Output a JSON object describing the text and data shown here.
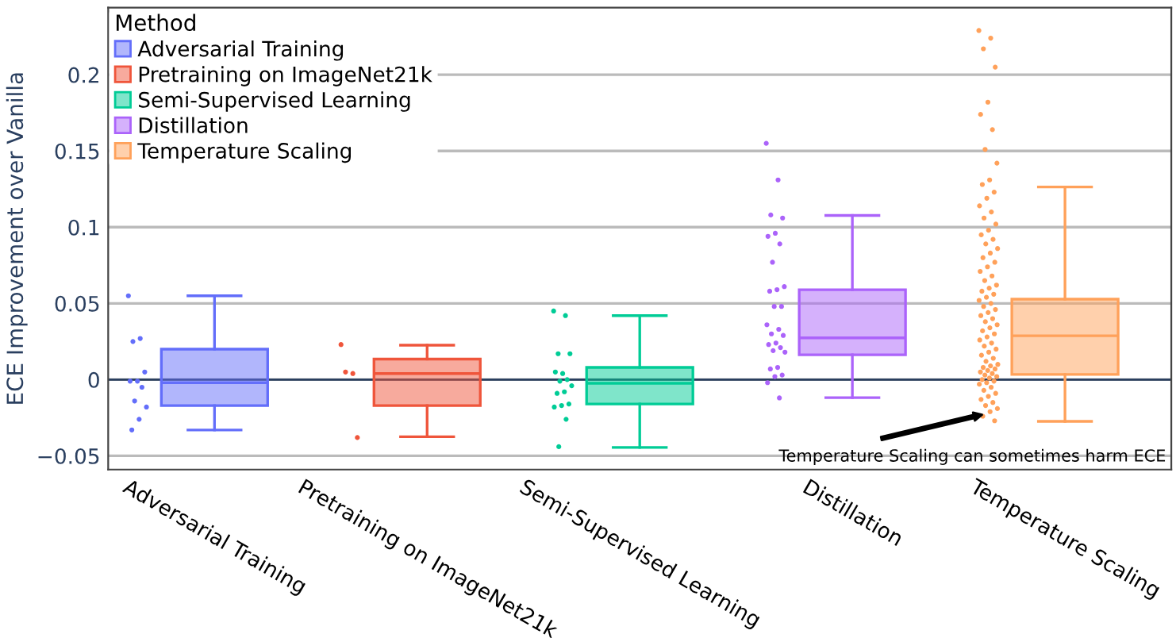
{
  "chart_data": {
    "type": "box",
    "ylabel": "ECE Improvement over Vanilla",
    "legend_title": "Method",
    "legend": "top left",
    "grid": "y",
    "categories": [
      "Adversarial Training",
      "Pretraining on ImageNet21k",
      "Semi-Supervised Learning",
      "Distillation",
      "Temperature Scaling"
    ],
    "colors": [
      "#636efa",
      "#ef553b",
      "#00cc96",
      "#ab63fa",
      "#ffa15a"
    ],
    "boxes": [
      {
        "low": -0.033,
        "q1": -0.017,
        "median": -0.002,
        "q3": 0.02,
        "high": 0.055
      },
      {
        "low": -0.0375,
        "q1": -0.017,
        "median": 0.004,
        "q3": 0.0135,
        "high": 0.0226
      },
      {
        "low": -0.0445,
        "q1": -0.016,
        "median": -0.0024,
        "q3": 0.008,
        "high": 0.042
      },
      {
        "low": -0.0118,
        "q1": 0.0163,
        "median": 0.0274,
        "q3": 0.059,
        "high": 0.1077
      },
      {
        "low": -0.0274,
        "q1": 0.0034,
        "median": 0.0288,
        "q3": 0.0528,
        "high": 0.1264
      }
    ],
    "series": [
      {
        "type": "scatter",
        "name": "Adversarial Training",
        "color": "#636efa",
        "x": [
          "Adversarial Training",
          "Adversarial Training",
          "Adversarial Training",
          "Adversarial Training",
          "Adversarial Training",
          "Adversarial Training",
          "Adversarial Training",
          "Adversarial Training",
          "Adversarial Training",
          "Adversarial Training",
          "Adversarial Training"
        ],
        "values": [
          0.055,
          0.027,
          0.025,
          0.005,
          -0.001,
          -0.001,
          -0.005,
          -0.014,
          -0.018,
          -0.026,
          -0.033
        ]
      },
      {
        "type": "scatter",
        "name": "Pretraining on ImageNet21k",
        "color": "#ef553b",
        "x": [
          "Pretraining on ImageNet21k",
          "Pretraining on ImageNet21k",
          "Pretraining on ImageNet21k",
          "Pretraining on ImageNet21k"
        ],
        "values": [
          0.023,
          0.004,
          0.005,
          -0.038
        ]
      },
      {
        "type": "scatter",
        "name": "Semi-Supervised Learning",
        "color": "#00cc96",
        "x": [
          "Semi-Supervised Learning",
          "Semi-Supervised Learning",
          "Semi-Supervised Learning",
          "Semi-Supervised Learning",
          "Semi-Supervised Learning",
          "Semi-Supervised Learning",
          "Semi-Supervised Learning",
          "Semi-Supervised Learning",
          "Semi-Supervised Learning",
          "Semi-Supervised Learning",
          "Semi-Supervised Learning",
          "Semi-Supervised Learning",
          "Semi-Supervised Learning",
          "Semi-Supervised Learning",
          "Semi-Supervised Learning",
          "Semi-Supervised Learning"
        ],
        "values": [
          0.045,
          0.042,
          0.017,
          0.017,
          0.004,
          0.005,
          0.0,
          -0.001,
          -0.004,
          -0.008,
          -0.009,
          -0.016,
          -0.017,
          -0.018,
          -0.026,
          -0.044
        ]
      },
      {
        "type": "scatter",
        "name": "Distillation",
        "color": "#ab63fa",
        "x": [
          "Distillation",
          "Distillation",
          "Distillation",
          "Distillation",
          "Distillation",
          "Distillation",
          "Distillation",
          "Distillation",
          "Distillation",
          "Distillation",
          "Distillation",
          "Distillation",
          "Distillation",
          "Distillation",
          "Distillation",
          "Distillation",
          "Distillation",
          "Distillation",
          "Distillation",
          "Distillation",
          "Distillation",
          "Distillation",
          "Distillation",
          "Distillation",
          "Distillation",
          "Distillation",
          "Distillation",
          "Distillation"
        ],
        "values": [
          0.155,
          0.131,
          0.108,
          0.106,
          0.096,
          0.094,
          0.089,
          0.077,
          0.061,
          0.059,
          0.058,
          0.048,
          0.048,
          0.036,
          0.033,
          0.03,
          0.029,
          0.024,
          0.023,
          0.021,
          0.019,
          0.018,
          0.008,
          0.007,
          0.003,
          0.002,
          -0.002,
          -0.012
        ]
      },
      {
        "type": "scatter",
        "name": "Temperature Scaling",
        "color": "#ffa15a",
        "x": [
          "Temperature Scaling",
          "Temperature Scaling",
          "Temperature Scaling",
          "Temperature Scaling",
          "Temperature Scaling",
          "Temperature Scaling",
          "Temperature Scaling",
          "Temperature Scaling",
          "Temperature Scaling",
          "Temperature Scaling",
          "Temperature Scaling",
          "Temperature Scaling",
          "Temperature Scaling",
          "Temperature Scaling",
          "Temperature Scaling",
          "Temperature Scaling",
          "Temperature Scaling",
          "Temperature Scaling",
          "Temperature Scaling",
          "Temperature Scaling",
          "Temperature Scaling",
          "Temperature Scaling",
          "Temperature Scaling",
          "Temperature Scaling",
          "Temperature Scaling",
          "Temperature Scaling",
          "Temperature Scaling",
          "Temperature Scaling",
          "Temperature Scaling",
          "Temperature Scaling",
          "Temperature Scaling",
          "Temperature Scaling",
          "Temperature Scaling",
          "Temperature Scaling",
          "Temperature Scaling",
          "Temperature Scaling",
          "Temperature Scaling",
          "Temperature Scaling",
          "Temperature Scaling",
          "Temperature Scaling",
          "Temperature Scaling",
          "Temperature Scaling",
          "Temperature Scaling",
          "Temperature Scaling",
          "Temperature Scaling",
          "Temperature Scaling",
          "Temperature Scaling",
          "Temperature Scaling",
          "Temperature Scaling",
          "Temperature Scaling",
          "Temperature Scaling",
          "Temperature Scaling",
          "Temperature Scaling",
          "Temperature Scaling",
          "Temperature Scaling",
          "Temperature Scaling",
          "Temperature Scaling",
          "Temperature Scaling",
          "Temperature Scaling",
          "Temperature Scaling",
          "Temperature Scaling",
          "Temperature Scaling",
          "Temperature Scaling",
          "Temperature Scaling",
          "Temperature Scaling",
          "Temperature Scaling",
          "Temperature Scaling",
          "Temperature Scaling",
          "Temperature Scaling",
          "Temperature Scaling",
          "Temperature Scaling",
          "Temperature Scaling",
          "Temperature Scaling",
          "Temperature Scaling",
          "Temperature Scaling",
          "Temperature Scaling",
          "Temperature Scaling",
          "Temperature Scaling",
          "Temperature Scaling",
          "Temperature Scaling"
        ],
        "values": [
          0.229,
          0.224,
          0.217,
          0.205,
          0.182,
          0.174,
          0.164,
          0.151,
          0.142,
          0.131,
          0.128,
          0.123,
          0.119,
          0.114,
          0.11,
          0.106,
          0.102,
          0.098,
          0.095,
          0.092,
          0.089,
          0.086,
          0.083,
          0.08,
          0.077,
          0.074,
          0.071,
          0.068,
          0.065,
          0.062,
          0.06,
          0.058,
          0.056,
          0.054,
          0.052,
          0.05,
          0.048,
          0.046,
          0.044,
          0.042,
          0.04,
          0.038,
          0.036,
          0.034,
          0.032,
          0.03,
          0.028,
          0.026,
          0.024,
          0.022,
          0.02,
          0.018,
          0.016,
          0.014,
          0.012,
          0.01,
          0.009,
          0.008,
          0.007,
          0.006,
          0.005,
          0.004,
          0.003,
          0.002,
          0.001,
          0.0,
          -0.001,
          -0.002,
          -0.003,
          -0.005,
          -0.007,
          -0.009,
          -0.011,
          -0.013,
          -0.015,
          -0.017,
          -0.019,
          -0.021,
          -0.024,
          -0.027
        ]
      }
    ],
    "ylim": [
      -0.059,
      0.244
    ],
    "yticks": [
      {
        "value": -0.05,
        "label": "−0.05"
      },
      0,
      0.05,
      0.1,
      0.15,
      0.2
    ],
    "ref_lines": [
      {
        "axis": "y",
        "value": 0,
        "color": "#2a3f5f"
      }
    ],
    "annotations": [
      {
        "text": "Temperature Scaling can sometimes harm ECE",
        "x": "Temperature Scaling",
        "y": -0.022
      }
    ]
  }
}
